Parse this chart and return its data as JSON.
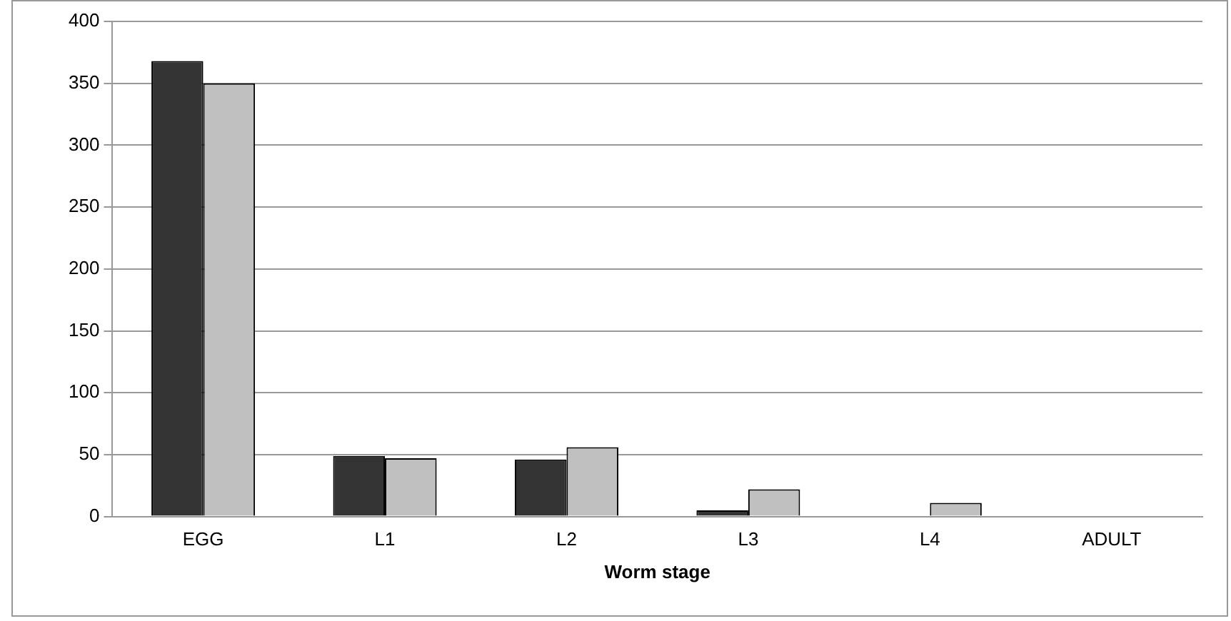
{
  "chart_data": {
    "type": "bar",
    "xlabel": "Worm stage",
    "categories": [
      "EGG",
      "L1",
      "L2",
      "L3",
      "L4",
      "ADULT"
    ],
    "series": [
      {
        "color": "#333333",
        "values": [
          368,
          49,
          46,
          5,
          0,
          0
        ]
      },
      {
        "color": "#c0c0c0",
        "values": [
          350,
          47,
          56,
          22,
          11,
          0
        ]
      }
    ],
    "ylim": [
      0,
      400
    ],
    "yticks": [
      0,
      50,
      100,
      150,
      200,
      250,
      300,
      350,
      400
    ],
    "grid": "y",
    "legend": false
  }
}
